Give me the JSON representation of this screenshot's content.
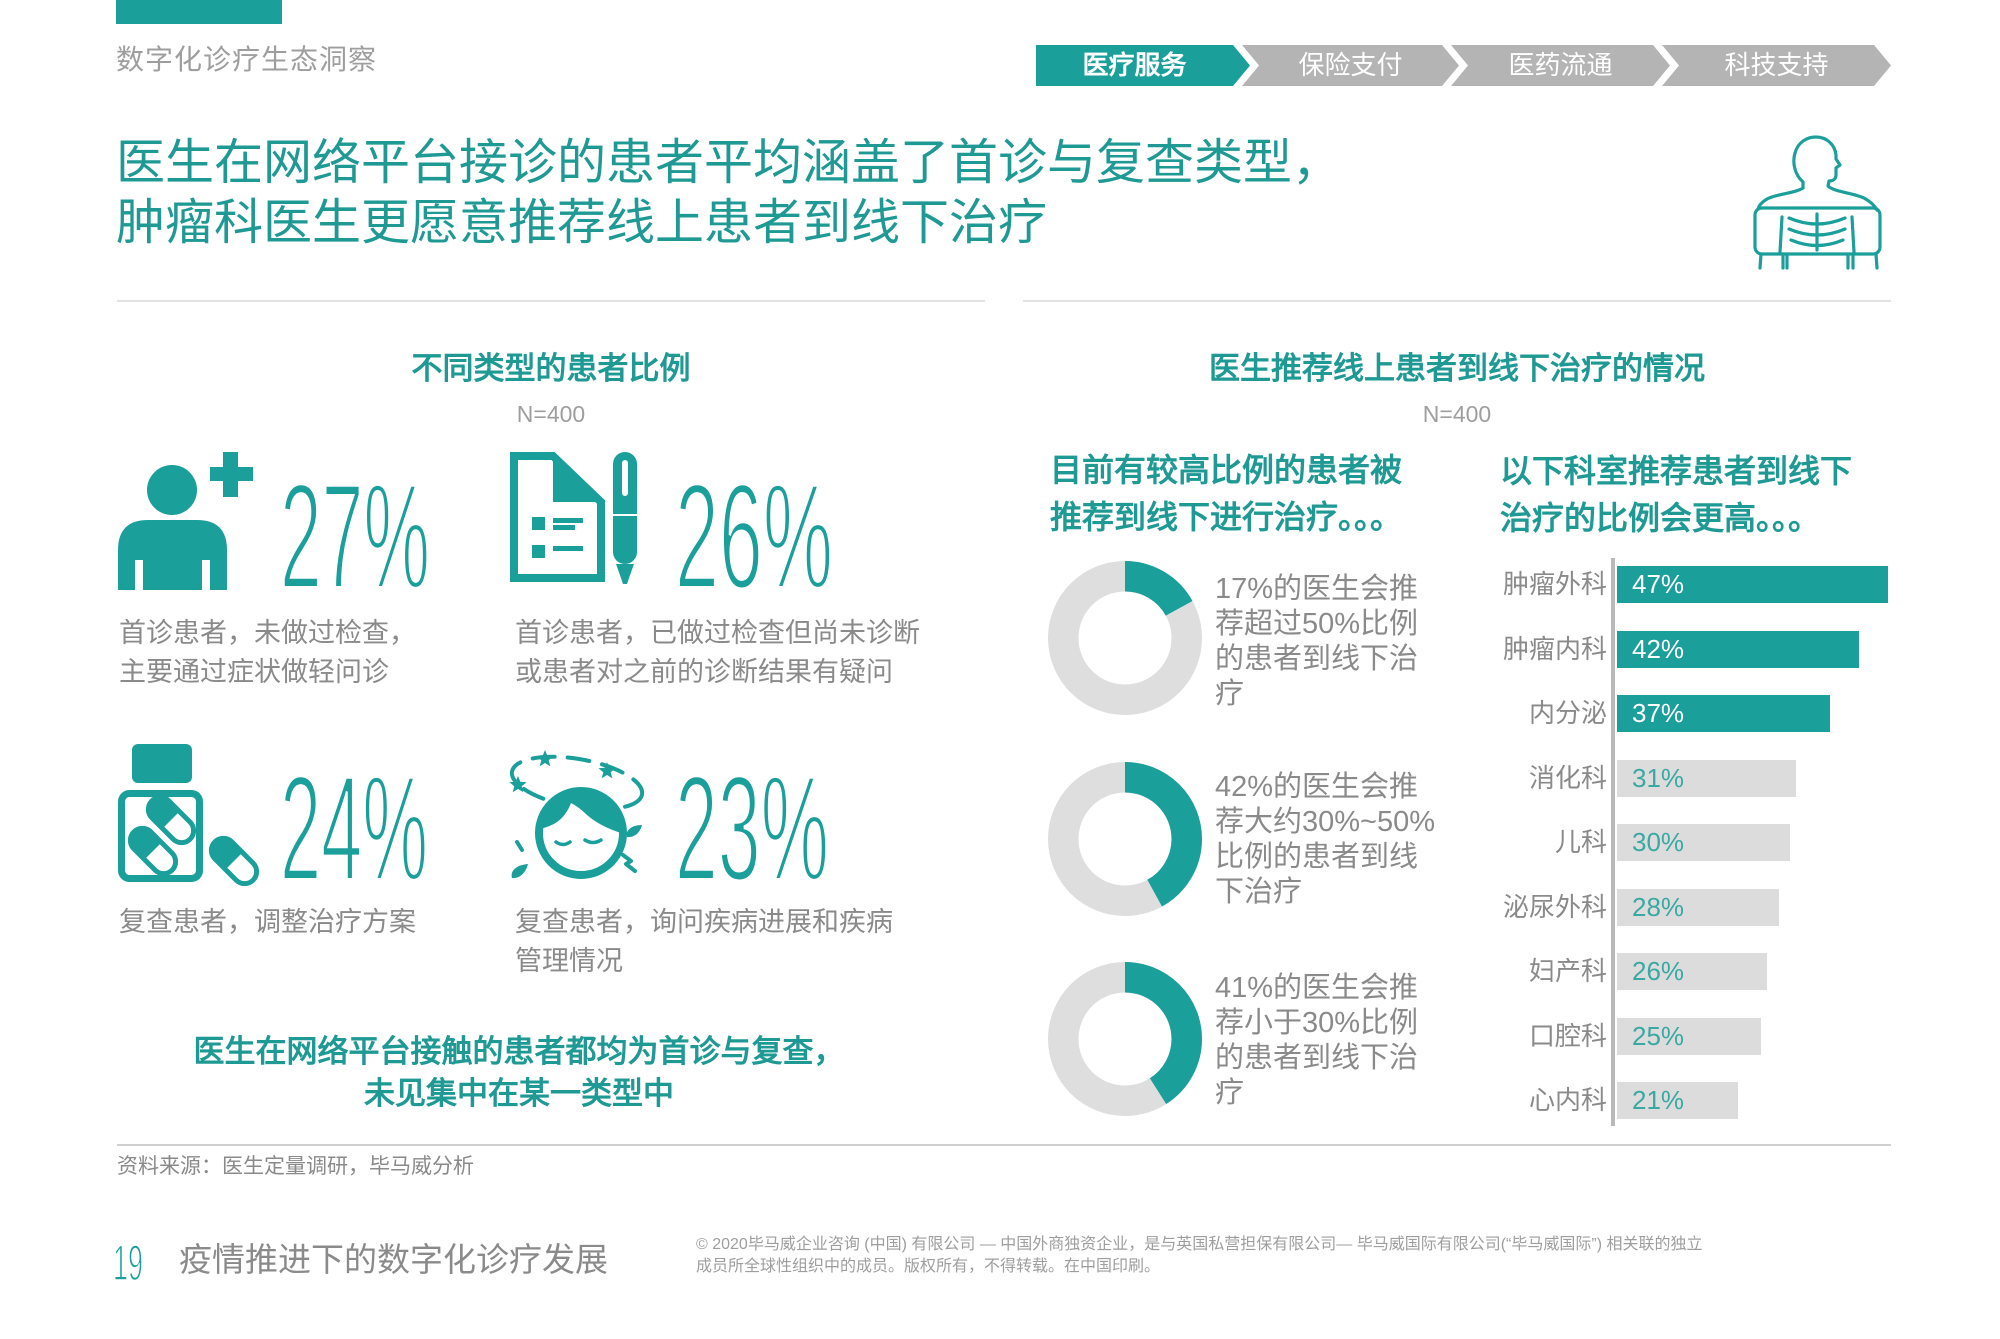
{
  "colors": {
    "teal": "#1a9f9b",
    "teal_text": "#1f9994",
    "gray_text": "#8a8a8a",
    "bar_gray": "#dcdcdc",
    "donut_gray": "#dedede",
    "nav_gray": "#b4b4b4"
  },
  "header": {
    "section_label": "数字化诊疗生态洞察",
    "nav": [
      {
        "label": "医疗服务",
        "active": true
      },
      {
        "label": "保险支付",
        "active": false
      },
      {
        "label": "医药流通",
        "active": false
      },
      {
        "label": "科技支持",
        "active": false
      }
    ],
    "icon": "xray-chest-icon"
  },
  "title": {
    "lines": [
      "医生在网络平台接诊的患者平均涵盖了首诊与复查类型，",
      "肿瘤科医生更愿意推荐线上患者到线下治疗"
    ]
  },
  "left": {
    "heading": "不同类型的患者比例",
    "sample": "N=400",
    "stats": [
      {
        "icon": "new-patient-icon",
        "value": "27%",
        "desc_lines": [
          "首诊患者，未做过检查，",
          "主要通过症状做轻问诊"
        ]
      },
      {
        "icon": "document-pen-icon",
        "value": "26%",
        "desc_lines": [
          "首诊患者，已做过检查但尚未诊断",
          "或患者对之前的诊断结果有疑问"
        ]
      },
      {
        "icon": "pill-bottle-icon",
        "value": "24%",
        "desc_lines": [
          "复查患者，调整治疗方案"
        ]
      },
      {
        "icon": "dizzy-face-icon",
        "value": "23%",
        "desc_lines": [
          "复查患者，询问疾病进展和疾病",
          "管理情况"
        ]
      }
    ],
    "summary_lines": [
      "医生在网络平台接触的患者都均为首诊与复查，",
      "未见集中在某一类型中"
    ]
  },
  "right": {
    "heading": "医生推荐线上患者到线下治疗的情况",
    "sample": "N=400",
    "donut_heading_lines": [
      "目前有较高比例的患者被",
      "推荐到线下进行治疗。。。"
    ],
    "donuts": [
      {
        "value": 17,
        "lines": [
          "17%的医生会推",
          "荐超过50%比例",
          "的患者到线下治",
          "疗"
        ]
      },
      {
        "value": 42,
        "lines": [
          "42%的医生会推",
          "荐大约30%~50%",
          "比例的患者到线",
          "下治疗"
        ]
      },
      {
        "value": 41,
        "lines": [
          "41%的医生会推",
          "荐小于30%比例",
          "的患者到线下治",
          "疗"
        ]
      }
    ],
    "bar_heading_lines": [
      "以下科室推荐患者到线下",
      "治疗的比例会更高。。。"
    ],
    "bars": [
      {
        "label": "肿瘤外科",
        "value": 47,
        "display": "47%",
        "highlight": true
      },
      {
        "label": "肿瘤内科",
        "value": 42,
        "display": "42%",
        "highlight": true
      },
      {
        "label": "内分泌",
        "value": 37,
        "display": "37%",
        "highlight": true
      },
      {
        "label": "消化科",
        "value": 31,
        "display": "31%",
        "highlight": false
      },
      {
        "label": "儿科",
        "value": 30,
        "display": "30%",
        "highlight": false
      },
      {
        "label": "泌尿外科",
        "value": 28,
        "display": "28%",
        "highlight": false
      },
      {
        "label": "妇产科",
        "value": 26,
        "display": "26%",
        "highlight": false
      },
      {
        "label": "口腔科",
        "value": 25,
        "display": "25%",
        "highlight": false
      },
      {
        "label": "心内科",
        "value": 21,
        "display": "21%",
        "highlight": false
      }
    ]
  },
  "source": "资料来源：医生定量调研，毕马威分析",
  "footer": {
    "page_number": "19",
    "title": "疫情推进下的数字化诊疗发展",
    "copyright_lines": [
      "© 2020毕马威企业咨询 (中国) 有限公司 — 中国外商独资企业，是与英国私营担保有限公司— 毕马威国际有限公司(“毕马威国际”) 相关联的独立",
      "成员所全球性组织中的成员。版权所有，不得转载。在中国印刷。"
    ]
  },
  "chart_data": [
    {
      "type": "table",
      "title": "不同类型的患者比例",
      "subtitle": "N=400",
      "categories": [
        "首诊患者，未做过检查，主要通过症状做轻问诊",
        "首诊患者，已做过检查但尚未诊断或患者对之前的诊断结果有疑问",
        "复查患者，调整治疗方案",
        "复查患者，询问疾病进展和疾病管理情况"
      ],
      "values": [
        27,
        26,
        24,
        23
      ],
      "unit": "%",
      "annotation": "医生在网络平台接触的患者都均为首诊与复查，未见集中在某一类型中"
    },
    {
      "type": "pie",
      "style": "donut",
      "title": "目前有较高比例的患者被推荐到线下进行治疗。。。",
      "subtitle": "N=400",
      "series": [
        {
          "name": "推荐超过50%比例的患者到线下治疗",
          "value": 17
        },
        {
          "name": "推荐大约30%~50%比例的患者到线下治疗",
          "value": 42
        },
        {
          "name": "推荐小于30%比例的患者到线下治疗",
          "value": 41
        }
      ],
      "unit": "% of doctors"
    },
    {
      "type": "bar",
      "orientation": "horizontal",
      "title": "以下科室推荐患者到线下治疗的比例会更高。。。",
      "subtitle": "N=400",
      "categories": [
        "肿瘤外科",
        "肿瘤内科",
        "内分泌",
        "消化科",
        "儿科",
        "泌尿外科",
        "妇产科",
        "口腔科",
        "心内科"
      ],
      "values": [
        47,
        42,
        37,
        31,
        30,
        28,
        26,
        25,
        21
      ],
      "highlighted": [
        "肿瘤外科",
        "肿瘤内科",
        "内分泌"
      ],
      "unit": "%",
      "grid": false,
      "data_labels": true
    }
  ]
}
